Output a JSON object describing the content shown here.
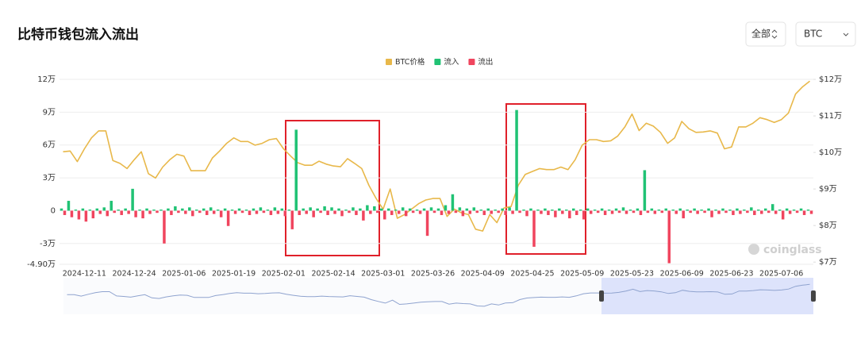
{
  "chart_data": {
    "type": "bar",
    "title": "比特币钱包流入流出",
    "controls": {
      "range": "全部",
      "asset": "BTC"
    },
    "watermark": "coinglass",
    "categories": [
      null,
      null,
      null,
      "2024-12-11",
      null,
      null,
      null,
      null,
      null,
      null,
      "2024-12-24",
      null,
      null,
      null,
      null,
      null,
      null,
      "2025-01-06",
      null,
      null,
      null,
      null,
      null,
      null,
      "2025-01-19",
      null,
      null,
      null,
      null,
      null,
      null,
      "2025-02-01",
      null,
      null,
      null,
      null,
      null,
      null,
      "2025-02-14",
      null,
      null,
      null,
      null,
      null,
      null,
      "2025-03-01",
      null,
      null,
      null,
      null,
      null,
      null,
      "2025-03-26",
      null,
      null,
      null,
      null,
      null,
      null,
      "2025-04-09",
      null,
      null,
      null,
      null,
      null,
      null,
      "2025-04-25",
      null,
      null,
      null,
      null,
      null,
      null,
      "2025-05-09",
      null,
      null,
      null,
      null,
      null,
      null,
      "2025-05-23",
      null,
      null,
      null,
      null,
      null,
      null,
      "2025-06-09",
      null,
      null,
      null,
      null,
      null,
      null,
      "2025-06-23",
      null,
      null,
      null,
      null,
      null,
      null,
      "2025-07-06",
      null,
      null,
      null,
      null
    ],
    "series": [
      {
        "name": "BTC价格",
        "type": "line",
        "axis": "y2",
        "color": "#e8b84a",
        "values": [
          100200,
          100400,
          97500,
          101000,
          104000,
          105900,
          105900,
          97800,
          97000,
          95600,
          98000,
          100200,
          94200,
          93000,
          96000,
          98000,
          99500,
          99000,
          95000,
          95000,
          95000,
          98500,
          100400,
          102500,
          104000,
          103000,
          103000,
          102000,
          102500,
          103500,
          103800,
          101000,
          99000,
          97200,
          96500,
          96500,
          97600,
          96800,
          96300,
          96100,
          98300,
          97000,
          95600,
          91000,
          87500,
          84500,
          90000,
          82000,
          83000,
          84500,
          86000,
          87000,
          87400,
          87400,
          82500,
          84500,
          83500,
          83000,
          79000,
          78500,
          83000,
          80800,
          84800,
          85200,
          91000,
          94000,
          94800,
          95600,
          95300,
          95300,
          96000,
          95300,
          98000,
          102000,
          103500,
          103500,
          103000,
          103200,
          104500,
          107000,
          110500,
          106000,
          108000,
          107200,
          105500,
          102500,
          104000,
          108500,
          106500,
          105500,
          105600,
          105900,
          105300,
          101000,
          101500,
          107000,
          107000,
          108000,
          109500,
          109000,
          108200,
          109000,
          110800,
          116000,
          118000,
          119500
        ]
      },
      {
        "name": "流入",
        "type": "bar",
        "color": "#20c274",
        "values": [
          2000,
          9000,
          1000,
          2000,
          1000,
          2000,
          3000,
          9000,
          1000,
          2000,
          20000,
          1000,
          2000,
          1000,
          1000,
          2000,
          4000,
          2000,
          3000,
          1000,
          2000,
          3000,
          1000,
          2000,
          1000,
          2000,
          1000,
          2000,
          3000,
          1000,
          3000,
          2000,
          1000,
          74000,
          2000,
          3000,
          2000,
          4000,
          3000,
          2000,
          1000,
          3000,
          2000,
          5000,
          4000,
          2000,
          2000,
          1000,
          3000,
          2000,
          1000,
          2000,
          3000,
          2000,
          5000,
          15000,
          3000,
          2000,
          3000,
          1000,
          2000,
          1000,
          2000,
          3000,
          92000,
          1000,
          2000,
          1000,
          2000,
          1000,
          2000,
          1000,
          2000,
          1000,
          2000,
          1000,
          2000,
          1000,
          2000,
          3000,
          1000,
          2000,
          37000,
          2000,
          1000,
          2000,
          1000,
          2000,
          1000,
          2000,
          1000,
          2000,
          1000,
          2000,
          1000,
          2000,
          1000,
          3000,
          1000,
          2000,
          6000,
          1000,
          2000,
          1000,
          2000,
          1000
        ]
      },
      {
        "name": "流出",
        "type": "bar",
        "color": "#f0455e",
        "values": [
          -4000,
          -6000,
          -8000,
          -10000,
          -7000,
          -3000,
          -5000,
          -2000,
          -4000,
          -3000,
          -6000,
          -7000,
          -3000,
          -2000,
          -30000,
          -4000,
          -2000,
          -3000,
          -5000,
          -2000,
          -4000,
          -3000,
          -6000,
          -14000,
          -3000,
          -2000,
          -4000,
          -3000,
          -2000,
          -4000,
          -3000,
          -5000,
          -17000,
          -4000,
          -3000,
          -6000,
          -2000,
          -4000,
          -3000,
          -5000,
          -2000,
          -4000,
          -9000,
          -3000,
          -2000,
          -8000,
          -4000,
          -3000,
          -5000,
          -2000,
          -3000,
          -23000,
          -2000,
          -4000,
          -3000,
          -2000,
          -5000,
          -3000,
          -2000,
          -4000,
          -3000,
          -2000,
          -4000,
          -3000,
          -2000,
          -5000,
          -33000,
          -3000,
          -4000,
          -6000,
          -3000,
          -7000,
          -4000,
          -8000,
          -3000,
          -2000,
          -4000,
          -3000,
          -2000,
          -3000,
          -2000,
          -4000,
          -2000,
          -3000,
          -2000,
          -48000,
          -3000,
          -7000,
          -2000,
          -3000,
          -2000,
          -6000,
          -3000,
          -2000,
          -4000,
          -3000,
          -2000,
          -4000,
          -3000,
          -2000,
          -3000,
          -8000,
          -3000,
          -2000,
          -4000,
          -3000
        ]
      }
    ],
    "ylim": [
      -49000,
      120000
    ],
    "yticks": [
      {
        "value": 120000,
        "label": "12万"
      },
      {
        "value": 90000,
        "label": "9万"
      },
      {
        "value": 60000,
        "label": "6万"
      },
      {
        "value": 30000,
        "label": "3万"
      },
      0,
      {
        "value": -30000,
        "label": "-3万"
      },
      {
        "value": -49000,
        "label": "-4.90万"
      }
    ],
    "y2lim": [
      69400,
      120000
    ],
    "y2ticks": [
      {
        "value": 120000,
        "label": "$12万"
      },
      {
        "value": 110000,
        "label": "$11万"
      },
      {
        "value": 100000,
        "label": "$10万"
      },
      {
        "value": 90000,
        "label": "$9万"
      },
      {
        "value": 80000,
        "label": "$8万"
      },
      {
        "value": 70000,
        "label": "$7万"
      }
    ],
    "grid": true
  }
}
